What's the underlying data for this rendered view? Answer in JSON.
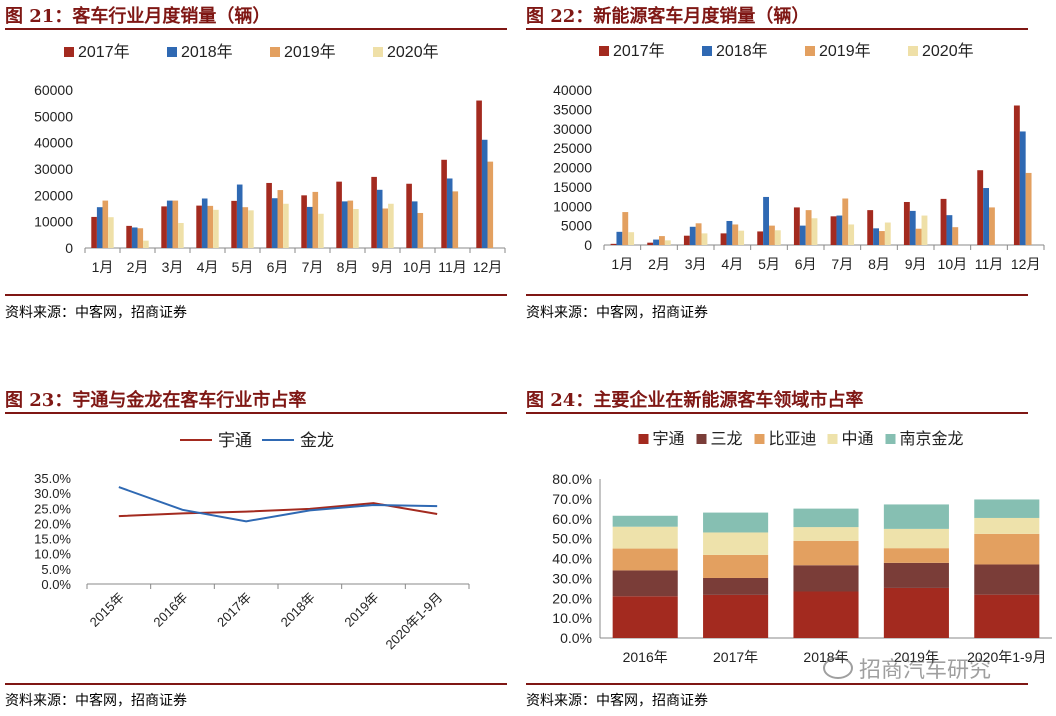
{
  "panels": [
    {
      "id": "fig21",
      "title": "图 21：客车行业月度销量（辆）",
      "source": "资料来源：中客网，招商证券",
      "chart": {
        "type": "bar",
        "categories": [
          "1月",
          "2月",
          "3月",
          "4月",
          "5月",
          "6月",
          "7月",
          "8月",
          "9月",
          "10月",
          "11月",
          "12月"
        ],
        "series": [
          {
            "name": "2017年",
            "color": "#a32a1f",
            "values": [
              11800,
              8400,
              15800,
              16100,
              17900,
              24700,
              20000,
              25200,
              27000,
              24400,
              33500,
              56000
            ]
          },
          {
            "name": "2018年",
            "color": "#2f69b3",
            "values": [
              15500,
              7800,
              18000,
              18800,
              24100,
              18900,
              15600,
              17700,
              22100,
              17700,
              26400,
              41100
            ]
          },
          {
            "name": "2019年",
            "color": "#e3a060",
            "values": [
              18000,
              7500,
              18000,
              16000,
              15500,
              22000,
              21300,
              18000,
              15000,
              13300,
              21500,
              32800
            ]
          },
          {
            "name": "2020年",
            "color": "#efe0a8",
            "values": [
              11700,
              2800,
              9500,
              14500,
              14300,
              16800,
              13000,
              14800,
              16800,
              null,
              null,
              null
            ]
          }
        ],
        "yticks": [
          "0",
          "10000",
          "20000",
          "30000",
          "40000",
          "50000",
          "60000"
        ],
        "ylim": [
          0,
          60000
        ]
      }
    },
    {
      "id": "fig22",
      "title": "图 22：新能源客车月度销量（辆）",
      "source": "资料来源：中客网，招商证券",
      "chart": {
        "type": "bar",
        "categories": [
          "1月",
          "2月",
          "3月",
          "4月",
          "5月",
          "6月",
          "7月",
          "8月",
          "9月",
          "10月",
          "11月",
          "12月"
        ],
        "series": [
          {
            "name": "2017年",
            "color": "#a32a1f",
            "values": [
              300,
              600,
              2400,
              3000,
              3500,
              9700,
              7400,
              9000,
              11100,
              11900,
              19300,
              36000
            ]
          },
          {
            "name": "2018年",
            "color": "#2f69b3",
            "values": [
              3400,
              1400,
              4700,
              6200,
              12400,
              5000,
              7600,
              4300,
              8800,
              7700,
              14700,
              29300
            ]
          },
          {
            "name": "2019年",
            "color": "#e3a060",
            "values": [
              8500,
              2300,
              5600,
              5300,
              5000,
              9000,
              12000,
              3600,
              4200,
              4600,
              9700,
              18600
            ]
          },
          {
            "name": "2020年",
            "color": "#efe0a8",
            "values": [
              3300,
              1200,
              3000,
              3700,
              3800,
              6900,
              5300,
              5800,
              7600,
              null,
              null,
              null
            ]
          }
        ],
        "yticks": [
          "0",
          "5000",
          "10000",
          "15000",
          "20000",
          "25000",
          "30000",
          "35000",
          "40000"
        ],
        "ylim": [
          0,
          40000
        ]
      }
    },
    {
      "id": "fig23",
      "title": "图 23：宇通与金龙在客车行业市占率",
      "source": "资料来源：中客网，招商证券",
      "chart": {
        "type": "line",
        "categories": [
          "2015年",
          "2016年",
          "2017年",
          "2018年",
          "2019年",
          "2020年1-9月"
        ],
        "series": [
          {
            "name": "宇通",
            "color": "#a32a1f",
            "values": [
              22.4,
              23.3,
              23.9,
              24.8,
              26.7,
              23.1
            ]
          },
          {
            "name": "金龙",
            "color": "#2f69b3",
            "values": [
              32.0,
              24.5,
              20.7,
              24.3,
              26.1,
              25.7
            ]
          }
        ],
        "yticks": [
          "0.0%",
          "5.0%",
          "10.0%",
          "15.0%",
          "20.0%",
          "25.0%",
          "30.0%",
          "35.0%"
        ],
        "ylim": [
          0,
          35
        ]
      }
    },
    {
      "id": "fig24",
      "title": "图 24：主要企业在新能源客车领域市占率",
      "source": "资料来源：中客网，招商证券",
      "chart": {
        "type": "bar",
        "stacked": true,
        "categories": [
          "2016年",
          "2017年",
          "2018年",
          "2019年",
          "2020年1-9月"
        ],
        "series": [
          {
            "name": "宇通",
            "color": "#a32a1f",
            "values": [
              21.0,
              21.7,
              23.4,
              25.2,
              21.8
            ]
          },
          {
            "name": "三龙",
            "color": "#7a3d38",
            "values": [
              13.0,
              8.5,
              13.2,
              12.6,
              15.2
            ]
          },
          {
            "name": "比亚迪",
            "color": "#e3a060",
            "values": [
              11.0,
              11.6,
              12.3,
              7.4,
              15.4
            ]
          },
          {
            "name": "中通",
            "color": "#eee2ab",
            "values": [
              11.0,
              11.3,
              6.9,
              9.7,
              8.0
            ]
          },
          {
            "name": "南京金龙",
            "color": "#86bfb2",
            "values": [
              5.5,
              10.0,
              9.3,
              12.3,
              9.3
            ]
          }
        ],
        "yticks": [
          "0.0%",
          "10.0%",
          "20.0%",
          "30.0%",
          "40.0%",
          "50.0%",
          "60.0%",
          "70.0%",
          "80.0%"
        ],
        "ylim": [
          0,
          80
        ]
      }
    }
  ],
  "watermark": "招商汽车研究"
}
